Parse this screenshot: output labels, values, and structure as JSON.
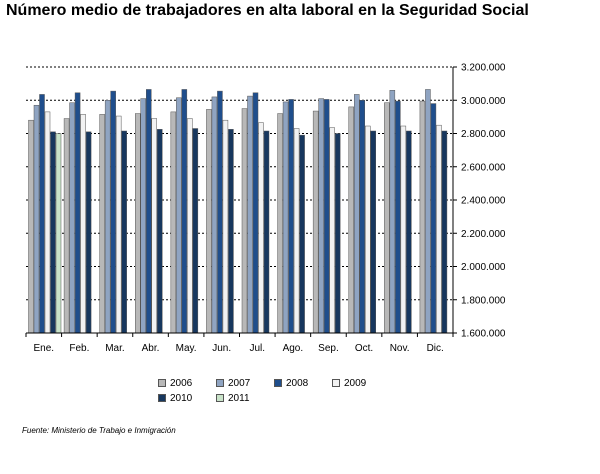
{
  "title": "Número medio de trabajadores en alta laboral en la Seguridad Social",
  "source": "Fuente: Ministerio de Trabajo e Inmigración",
  "chart_data": {
    "type": "bar",
    "title": "Número medio de trabajadores en alta laboral en la Seguridad Social",
    "categories": [
      "Ene.",
      "Feb.",
      "Mar.",
      "Abr.",
      "May.",
      "Jun.",
      "Jul.",
      "Ago.",
      "Sep.",
      "Oct.",
      "Nov.",
      "Dic."
    ],
    "y_ticks": [
      "1.600.000",
      "1.800.000",
      "2.000.000",
      "2.200.000",
      "2.400.000",
      "2.600.000",
      "2.800.000",
      "3.000.000",
      "3.200.000"
    ],
    "ylim": [
      1600000,
      3200000
    ],
    "y_axis_side": "right",
    "grid": "dashed horizontal lines",
    "legend_position": "bottom",
    "series": [
      {
        "name": "2006",
        "color": "#b8b8b8",
        "values": [
          2880000,
          2890000,
          2915000,
          2920000,
          2930000,
          2945000,
          2950000,
          2920000,
          2935000,
          2960000,
          2985000,
          2995000
        ]
      },
      {
        "name": "2007",
        "color": "#8fa4c2",
        "values": [
          2970000,
          2985000,
          3000000,
          3010000,
          3015000,
          3020000,
          3025000,
          2990000,
          3010000,
          3035000,
          3060000,
          3065000
        ]
      },
      {
        "name": "2008",
        "color": "#1f4e8c",
        "values": [
          3035000,
          3045000,
          3055000,
          3065000,
          3065000,
          3055000,
          3045000,
          3005000,
          3005000,
          3000000,
          2995000,
          2980000
        ]
      },
      {
        "name": "2009",
        "color": "#f2f2f2",
        "values": [
          2930000,
          2915000,
          2905000,
          2890000,
          2890000,
          2880000,
          2865000,
          2830000,
          2835000,
          2845000,
          2845000,
          2850000
        ]
      },
      {
        "name": "2010",
        "color": "#17375e",
        "values": [
          2810000,
          2810000,
          2815000,
          2825000,
          2830000,
          2825000,
          2815000,
          2790000,
          2800000,
          2815000,
          2815000,
          2815000
        ]
      },
      {
        "name": "2011",
        "color": "#c9e3c9",
        "values": [
          2800000,
          null,
          null,
          null,
          null,
          null,
          null,
          null,
          null,
          null,
          null,
          null
        ]
      }
    ]
  }
}
